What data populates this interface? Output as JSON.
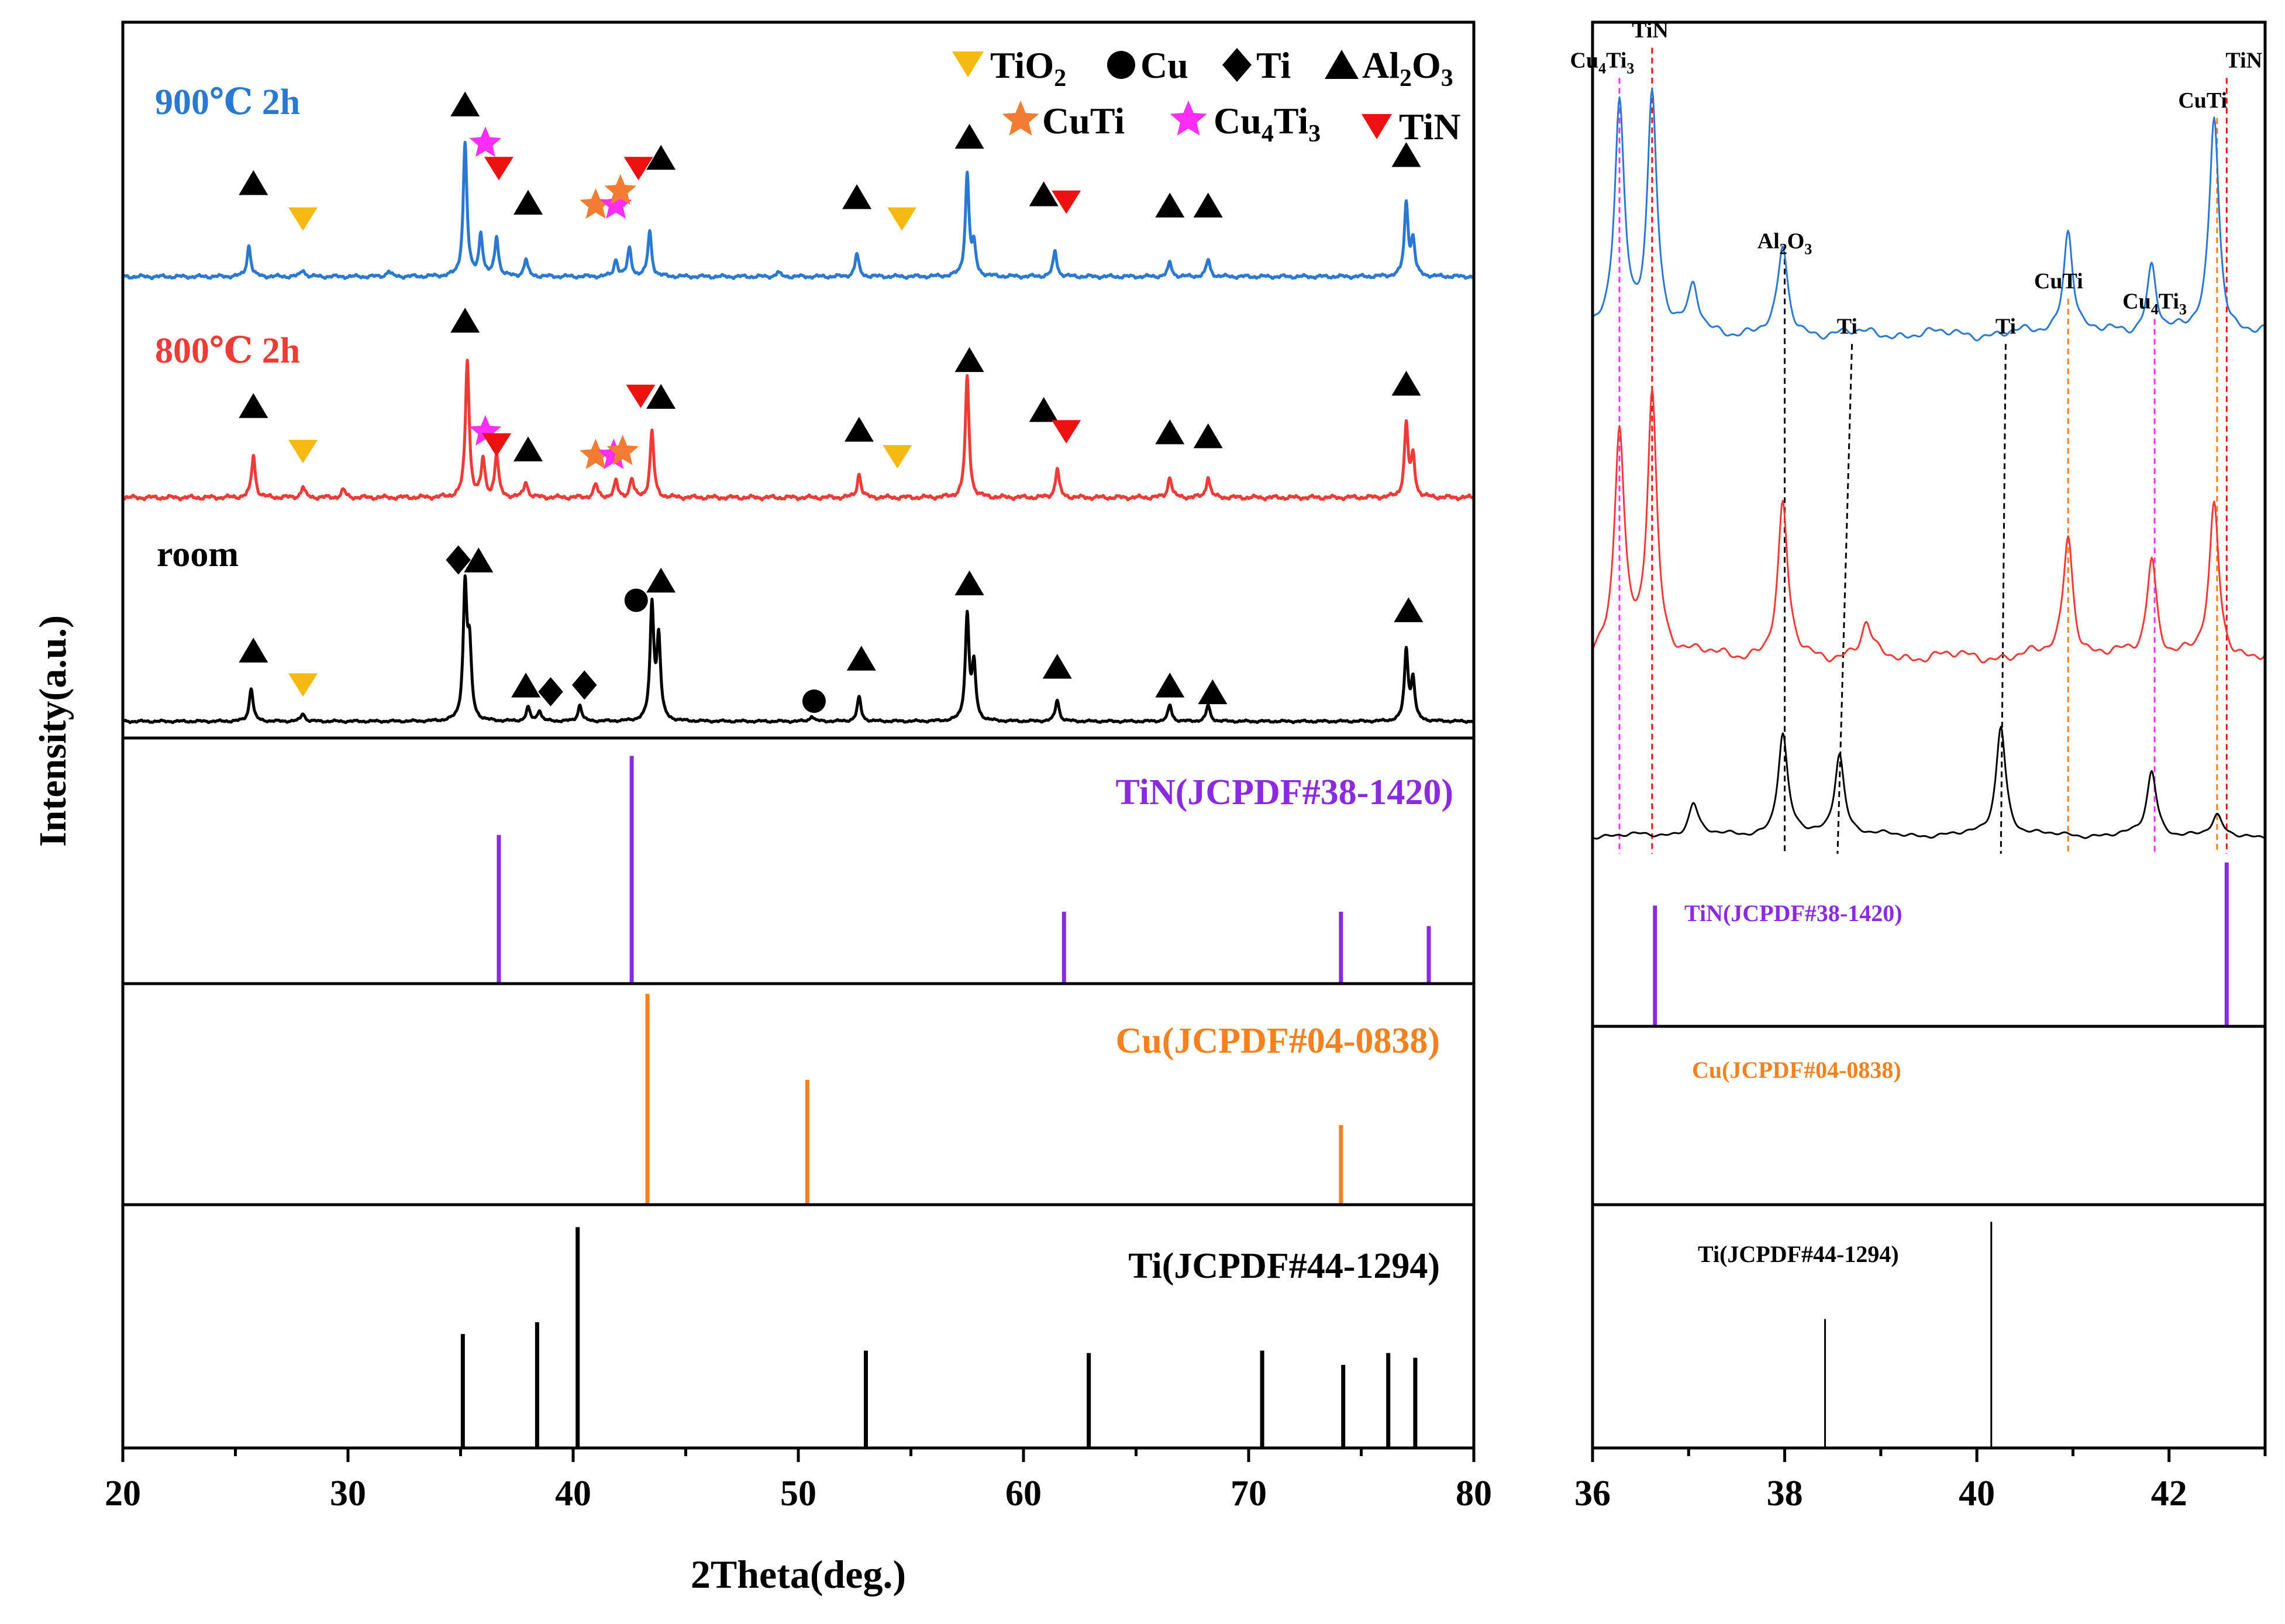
{
  "chart_data": {
    "type": "line",
    "title": "",
    "colors": {
      "blue": "#2a78d0",
      "red": "#ee3b38",
      "black": "#000000",
      "purple": "#8a2be2",
      "orange": "#f5801e",
      "yellow": "#f6b90f",
      "star_orange": "#f07d32",
      "magenta": "#ff2df5",
      "tin_red": "#ee1111"
    },
    "main_panel": {
      "xlabel": "2Theta(deg.)",
      "ylabel": "Intensity(a.u.)",
      "xlim": [
        20,
        80
      ],
      "xticks": [
        20,
        30,
        40,
        50,
        60,
        70,
        80
      ],
      "legend": [
        {
          "marker": "tri-down",
          "color": "yellow",
          "text": "TiO",
          "sub": "2"
        },
        {
          "marker": "circle",
          "color": "black",
          "text": "Cu",
          "sub": ""
        },
        {
          "marker": "diamond",
          "color": "black",
          "text": "Ti",
          "sub": ""
        },
        {
          "marker": "tri-up",
          "color": "black",
          "text": "Al",
          "sub": "2",
          "text2": "O",
          "sub2": "3"
        },
        {
          "marker": "star",
          "color": "star_orange",
          "text": "CuTi",
          "sub": ""
        },
        {
          "marker": "star",
          "color": "magenta",
          "text": "Cu",
          "sub": "4",
          "text2": "Ti",
          "sub2": "3"
        },
        {
          "marker": "tri-down",
          "color": "tin_red",
          "text": "TiN",
          "sub": ""
        }
      ],
      "series": [
        {
          "name": "900℃ 2h",
          "color": "blue",
          "baseline": 0.05,
          "noise": 0.012,
          "peaks": [
            [
              25.6,
              0.22
            ],
            [
              28.0,
              0.05
            ],
            [
              31.8,
              0.04
            ],
            [
              35.2,
              0.95
            ],
            [
              35.9,
              0.3
            ],
            [
              36.6,
              0.28
            ],
            [
              37.9,
              0.12
            ],
            [
              41.9,
              0.12
            ],
            [
              42.5,
              0.2
            ],
            [
              43.4,
              0.32
            ],
            [
              49.1,
              0.03
            ],
            [
              52.6,
              0.16
            ],
            [
              57.5,
              0.72
            ],
            [
              57.8,
              0.2
            ],
            [
              61.4,
              0.18
            ],
            [
              66.5,
              0.1
            ],
            [
              68.2,
              0.12
            ],
            [
              77.0,
              0.52
            ],
            [
              77.3,
              0.25
            ]
          ],
          "markers": [
            {
              "x": 25.8,
              "y": 0.72,
              "type": "tri-up",
              "color": "black"
            },
            {
              "x": 28.0,
              "y": 0.46,
              "type": "tri-down",
              "color": "yellow"
            },
            {
              "x": 35.2,
              "y": 1.28,
              "type": "tri-up",
              "color": "black"
            },
            {
              "x": 36.1,
              "y": 1.0,
              "type": "star",
              "color": "magenta"
            },
            {
              "x": 36.7,
              "y": 0.82,
              "type": "tri-down",
              "color": "tin_red"
            },
            {
              "x": 38.0,
              "y": 0.58,
              "type": "tri-up",
              "color": "black"
            },
            {
              "x": 41.0,
              "y": 0.56,
              "type": "star",
              "color": "star_orange"
            },
            {
              "x": 41.9,
              "y": 0.56,
              "type": "star",
              "color": "magenta"
            },
            {
              "x": 42.1,
              "y": 0.66,
              "type": "star",
              "color": "star_orange"
            },
            {
              "x": 42.9,
              "y": 0.82,
              "type": "tri-down",
              "color": "tin_red"
            },
            {
              "x": 43.9,
              "y": 0.9,
              "type": "tri-up",
              "color": "black"
            },
            {
              "x": 52.6,
              "y": 0.62,
              "type": "tri-up",
              "color": "black"
            },
            {
              "x": 54.6,
              "y": 0.46,
              "type": "tri-down",
              "color": "yellow"
            },
            {
              "x": 57.6,
              "y": 1.05,
              "type": "tri-up",
              "color": "black"
            },
            {
              "x": 60.9,
              "y": 0.64,
              "type": "tri-up",
              "color": "black"
            },
            {
              "x": 61.9,
              "y": 0.58,
              "type": "tri-down",
              "color": "tin_red"
            },
            {
              "x": 66.5,
              "y": 0.56,
              "type": "tri-up",
              "color": "black"
            },
            {
              "x": 68.2,
              "y": 0.56,
              "type": "tri-up",
              "color": "black"
            },
            {
              "x": 77.0,
              "y": 0.92,
              "type": "tri-up",
              "color": "black"
            }
          ]
        },
        {
          "name": "800℃ 2h",
          "color": "red",
          "baseline": 0.05,
          "noise": 0.015,
          "peaks": [
            [
              25.8,
              0.32
            ],
            [
              28.0,
              0.08
            ],
            [
              29.8,
              0.06
            ],
            [
              35.3,
              1.05
            ],
            [
              36.0,
              0.28
            ],
            [
              36.6,
              0.32
            ],
            [
              37.9,
              0.12
            ],
            [
              41.0,
              0.1
            ],
            [
              41.9,
              0.12
            ],
            [
              42.6,
              0.14
            ],
            [
              43.5,
              0.5
            ],
            [
              52.7,
              0.18
            ],
            [
              57.5,
              0.92
            ],
            [
              61.5,
              0.22
            ],
            [
              66.5,
              0.16
            ],
            [
              68.2,
              0.16
            ],
            [
              77.0,
              0.55
            ],
            [
              77.3,
              0.3
            ]
          ],
          "markers": [
            {
              "x": 25.8,
              "y": 0.75,
              "type": "tri-up",
              "color": "black"
            },
            {
              "x": 28.0,
              "y": 0.4,
              "type": "tri-down",
              "color": "yellow"
            },
            {
              "x": 35.2,
              "y": 1.4,
              "type": "tri-up",
              "color": "black"
            },
            {
              "x": 36.1,
              "y": 0.55,
              "type": "star",
              "color": "magenta"
            },
            {
              "x": 36.6,
              "y": 0.45,
              "type": "tri-down",
              "color": "tin_red"
            },
            {
              "x": 38.0,
              "y": 0.42,
              "type": "tri-up",
              "color": "black"
            },
            {
              "x": 41.0,
              "y": 0.37,
              "type": "star",
              "color": "star_orange"
            },
            {
              "x": 41.8,
              "y": 0.37,
              "type": "star",
              "color": "magenta"
            },
            {
              "x": 42.2,
              "y": 0.4,
              "type": "star",
              "color": "star_orange"
            },
            {
              "x": 43.0,
              "y": 0.82,
              "type": "tri-down",
              "color": "tin_red"
            },
            {
              "x": 43.9,
              "y": 0.82,
              "type": "tri-up",
              "color": "black"
            },
            {
              "x": 52.7,
              "y": 0.57,
              "type": "tri-up",
              "color": "black"
            },
            {
              "x": 54.4,
              "y": 0.36,
              "type": "tri-down",
              "color": "yellow"
            },
            {
              "x": 57.6,
              "y": 1.1,
              "type": "tri-up",
              "color": "black"
            },
            {
              "x": 60.9,
              "y": 0.72,
              "type": "tri-up",
              "color": "black"
            },
            {
              "x": 61.9,
              "y": 0.55,
              "type": "tri-down",
              "color": "tin_red"
            },
            {
              "x": 66.5,
              "y": 0.55,
              "type": "tri-up",
              "color": "black"
            },
            {
              "x": 68.2,
              "y": 0.52,
              "type": "tri-up",
              "color": "black"
            },
            {
              "x": 77.0,
              "y": 0.92,
              "type": "tri-up",
              "color": "black"
            }
          ]
        },
        {
          "name": "room",
          "color": "black",
          "baseline": 0.05,
          "noise": 0.008,
          "peaks": [
            [
              25.7,
              0.25
            ],
            [
              28.0,
              0.06
            ],
            [
              35.2,
              0.98
            ],
            [
              35.4,
              0.5
            ],
            [
              38.0,
              0.1
            ],
            [
              38.5,
              0.08
            ],
            [
              40.3,
              0.12
            ],
            [
              43.5,
              0.85
            ],
            [
              43.8,
              0.6
            ],
            [
              50.6,
              0.04
            ],
            [
              52.7,
              0.18
            ],
            [
              57.5,
              0.78
            ],
            [
              57.8,
              0.4
            ],
            [
              61.5,
              0.16
            ],
            [
              66.5,
              0.12
            ],
            [
              68.2,
              0.12
            ],
            [
              77.0,
              0.52
            ],
            [
              77.3,
              0.3
            ]
          ],
          "markers": [
            {
              "x": 25.8,
              "y": 0.58,
              "type": "tri-up",
              "color": "black"
            },
            {
              "x": 28.0,
              "y": 0.32,
              "type": "tri-down",
              "color": "yellow"
            },
            {
              "x": 34.9,
              "y": 1.25,
              "type": "diamond",
              "color": "black"
            },
            {
              "x": 35.8,
              "y": 1.25,
              "type": "tri-up",
              "color": "black"
            },
            {
              "x": 37.9,
              "y": 0.32,
              "type": "tri-up",
              "color": "black"
            },
            {
              "x": 39.0,
              "y": 0.27,
              "type": "diamond",
              "color": "black"
            },
            {
              "x": 40.5,
              "y": 0.32,
              "type": "diamond",
              "color": "black"
            },
            {
              "x": 42.8,
              "y": 0.95,
              "type": "circle",
              "color": "black"
            },
            {
              "x": 43.9,
              "y": 1.1,
              "type": "tri-up",
              "color": "black"
            },
            {
              "x": 50.7,
              "y": 0.2,
              "type": "circle",
              "color": "black"
            },
            {
              "x": 52.8,
              "y": 0.52,
              "type": "tri-up",
              "color": "black"
            },
            {
              "x": 57.6,
              "y": 1.08,
              "type": "tri-up",
              "color": "black"
            },
            {
              "x": 61.5,
              "y": 0.46,
              "type": "tri-up",
              "color": "black"
            },
            {
              "x": 66.5,
              "y": 0.32,
              "type": "tri-up",
              "color": "black"
            },
            {
              "x": 68.4,
              "y": 0.27,
              "type": "tri-up",
              "color": "black"
            },
            {
              "x": 77.1,
              "y": 0.88,
              "type": "tri-up",
              "color": "black"
            }
          ]
        }
      ],
      "references": [
        {
          "label": "TiN(JCPDF#38-1420)",
          "color": "purple",
          "peaks": [
            [
              36.7,
              0.62
            ],
            [
              42.6,
              0.95
            ],
            [
              61.8,
              0.3
            ],
            [
              74.1,
              0.3
            ],
            [
              78.0,
              0.24
            ]
          ]
        },
        {
          "label": "Cu(JCPDF#04-0838)",
          "color": "orange",
          "peaks": [
            [
              43.3,
              0.98
            ],
            [
              50.4,
              0.58
            ],
            [
              74.1,
              0.37
            ]
          ]
        },
        {
          "label": "Ti(JCPDF#44-1294)",
          "color": "black",
          "peaks": [
            [
              35.1,
              0.48
            ],
            [
              38.4,
              0.53
            ],
            [
              40.2,
              0.93
            ],
            [
              53.0,
              0.41
            ],
            [
              62.9,
              0.4
            ],
            [
              70.6,
              0.41
            ],
            [
              74.2,
              0.35
            ],
            [
              76.2,
              0.4
            ],
            [
              77.4,
              0.38
            ]
          ]
        }
      ]
    },
    "inset_panel": {
      "xlim": [
        36,
        43
      ],
      "xticks": [
        36,
        38,
        40,
        42
      ],
      "series": [
        {
          "name": "900℃ 2h",
          "color": "blue",
          "baseline": 0.08,
          "noise": 0.02,
          "peaks": [
            [
              36.28,
              0.8
            ],
            [
              36.62,
              0.85
            ],
            [
              37.05,
              0.15
            ],
            [
              37.98,
              0.3
            ],
            [
              40.95,
              0.38
            ],
            [
              41.82,
              0.25
            ],
            [
              42.47,
              0.78
            ]
          ]
        },
        {
          "name": "800℃ 2h",
          "color": "red",
          "baseline": 0.05,
          "noise": 0.02,
          "peaks": [
            [
              36.28,
              0.72
            ],
            [
              36.62,
              0.85
            ],
            [
              37.98,
              0.48
            ],
            [
              38.85,
              0.1
            ],
            [
              40.95,
              0.4
            ],
            [
              41.82,
              0.32
            ],
            [
              42.47,
              0.48
            ]
          ]
        },
        {
          "name": "room",
          "color": "black",
          "baseline": 0.05,
          "noise": 0.015,
          "peaks": [
            [
              37.05,
              0.18
            ],
            [
              37.98,
              0.55
            ],
            [
              38.57,
              0.45
            ],
            [
              40.25,
              0.6
            ],
            [
              41.82,
              0.35
            ],
            [
              42.5,
              0.1
            ]
          ]
        }
      ],
      "guides": [
        {
          "label": "Cu",
          "sub": "4",
          "label2": "Ti",
          "sub2": "3",
          "color": "magenta",
          "x_top": 36.28,
          "x_bottom": 36.28,
          "label_x": 36.1,
          "label_y": 0.955
        },
        {
          "label": "TiN",
          "sub": "",
          "color": "tin_red",
          "x_top": 36.62,
          "x_bottom": 36.62,
          "label_x": 36.6,
          "label_y": 0.985
        },
        {
          "label": "Al",
          "sub": "2",
          "label2": "O",
          "sub2": "3",
          "color": "black",
          "x_top": 38.0,
          "x_bottom": 38.0,
          "label_x": 38.0,
          "label_y": 0.775
        },
        {
          "label": "Ti",
          "sub": "",
          "color": "black",
          "x_top": 38.7,
          "x_bottom": 38.55,
          "label_x": 38.65,
          "label_y": 0.69
        },
        {
          "label": "Ti",
          "sub": "",
          "color": "black",
          "x_top": 40.3,
          "x_bottom": 40.25,
          "label_x": 40.3,
          "label_y": 0.69
        },
        {
          "label": "CuTi",
          "sub": "",
          "color": "orange",
          "x_top": 40.95,
          "x_bottom": 40.95,
          "label_x": 40.85,
          "label_y": 0.735
        },
        {
          "label": "Cu",
          "sub": "4",
          "label2": "Ti",
          "sub2": "3",
          "color": "magenta",
          "x_top": 41.85,
          "x_bottom": 41.85,
          "label_x": 41.85,
          "label_y": 0.715
        },
        {
          "label": "CuTi",
          "sub": "",
          "color": "orange",
          "x_top": 42.5,
          "x_bottom": 42.5,
          "label_x": 42.35,
          "label_y": 0.915
        },
        {
          "label": "TiN",
          "sub": "",
          "color": "tin_red",
          "x_top": 42.6,
          "x_bottom": 42.6,
          "label_x": 42.78,
          "label_y": 0.955
        }
      ],
      "references": [
        {
          "label": "TiN(JCPDF#38-1420)",
          "color": "purple",
          "peaks": [
            [
              36.65,
              0.7
            ],
            [
              42.6,
              0.95
            ]
          ]
        },
        {
          "label": "Cu(JCPDF#04-0838)",
          "color": "orange",
          "peaks": []
        },
        {
          "label": "Ti(JCPDF#44-1294)",
          "color": "black",
          "peaks": [
            [
              38.42,
              0.53
            ],
            [
              40.15,
              0.93
            ]
          ]
        }
      ]
    }
  }
}
